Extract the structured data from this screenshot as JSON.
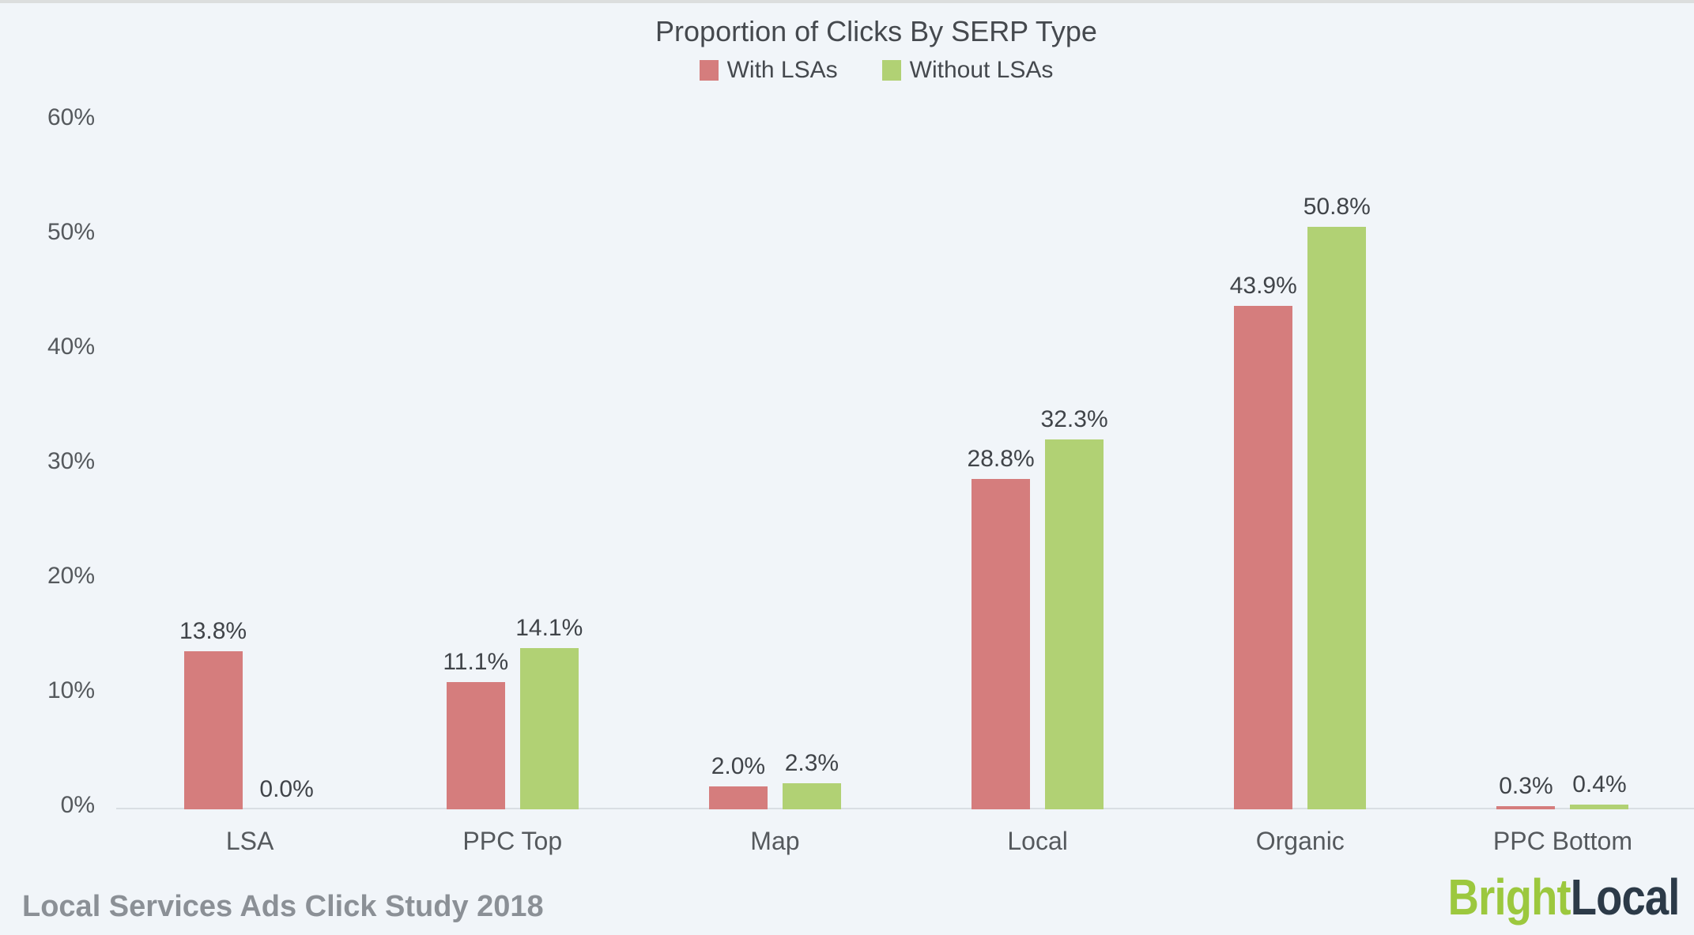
{
  "chart_data": {
    "type": "bar",
    "title": "Proportion of Clicks By SERP Type",
    "categories": [
      "LSA",
      "PPC Top",
      "Map",
      "Local",
      "Organic",
      "PPC Bottom"
    ],
    "series": [
      {
        "name": "With LSAs",
        "color": "#d57d7d",
        "values": [
          13.8,
          11.1,
          2.0,
          28.8,
          43.9,
          0.3
        ]
      },
      {
        "name": "Without LSAs",
        "color": "#b1d174",
        "values": [
          0.0,
          14.1,
          2.3,
          32.3,
          50.8,
          0.4
        ]
      }
    ],
    "value_labels": [
      [
        "13.8%",
        "11.1%",
        "2.0%",
        "28.8%",
        "43.9%",
        "0.3%"
      ],
      [
        "0.0%",
        "14.1%",
        "2.3%",
        "32.3%",
        "50.8%",
        "0.4%"
      ]
    ],
    "xlabel": "",
    "ylabel": "",
    "ylim": [
      0,
      60
    ],
    "yticks": [
      "0%",
      "10%",
      "20%",
      "30%",
      "40%",
      "50%",
      "60%"
    ],
    "grid": false,
    "legend_position": "top-center"
  },
  "footer": {
    "source_text": "Local Services Ads Click Study 2018",
    "logo": {
      "part1": "Bright",
      "part2": "Local",
      "part1_color": "#9cc83e",
      "part2_color": "#2c3a48"
    }
  },
  "colors": {
    "background": "#f1f5f9",
    "axis_line": "#d9dee3",
    "title_text": "#45494e",
    "tick_text": "#55595d",
    "value_text": "#404449",
    "footer_text": "#8b9096"
  }
}
